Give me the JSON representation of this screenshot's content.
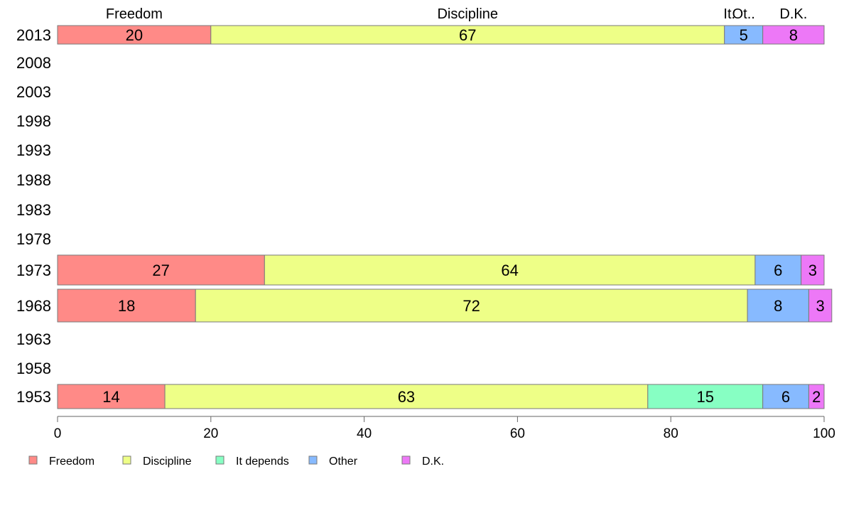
{
  "chart_data": {
    "type": "bar",
    "orientation": "horizontal",
    "stacked": true,
    "categories": [
      "2013",
      "2008",
      "2003",
      "1998",
      "1993",
      "1988",
      "1983",
      "1978",
      "1973",
      "1968",
      "1963",
      "1958",
      "1953"
    ],
    "series": [
      {
        "name": "Freedom",
        "color": "#ff8a87",
        "values": [
          20,
          null,
          null,
          null,
          null,
          null,
          null,
          null,
          27,
          18,
          null,
          null,
          14
        ]
      },
      {
        "name": "Discipline",
        "color": "#eeff87",
        "values": [
          67,
          null,
          null,
          null,
          null,
          null,
          null,
          null,
          64,
          72,
          null,
          null,
          63
        ]
      },
      {
        "name": "It depends",
        "color": "#87ffc3",
        "values": [
          null,
          null,
          null,
          null,
          null,
          null,
          null,
          null,
          null,
          null,
          null,
          null,
          15
        ]
      },
      {
        "name": "Other",
        "color": "#87baff",
        "values": [
          5,
          null,
          null,
          null,
          null,
          null,
          null,
          null,
          6,
          8,
          null,
          null,
          6
        ]
      },
      {
        "name": "D.K.",
        "color": "#ed78f7",
        "values": [
          8,
          null,
          null,
          null,
          null,
          null,
          null,
          null,
          3,
          3,
          null,
          null,
          2
        ]
      }
    ],
    "top_labels": [
      "Freedom",
      "Discipline",
      "It.",
      "Ot..",
      "D.K."
    ],
    "xlim": [
      0,
      100
    ],
    "xticks": [
      "0",
      "20",
      "40",
      "60",
      "80",
      "100"
    ],
    "grid": false,
    "legend_position": "bottom-left"
  }
}
